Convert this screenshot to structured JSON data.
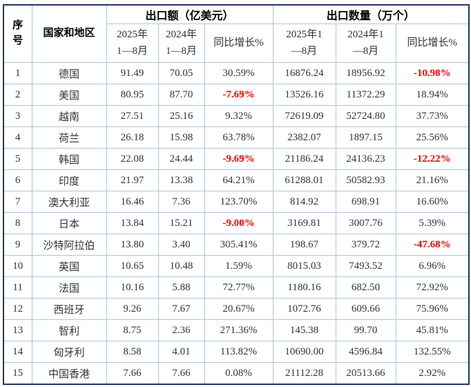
{
  "table": {
    "title_semantics": "export value and quantity by country table",
    "header": {
      "col_serial": "序\n号",
      "col_country": "国家和地区",
      "group_export_value": "出口额（亿美元）",
      "group_export_qty": "出口数量（万个）",
      "value_sub": [
        "2025年\n1—8月",
        "2024年\n1—8月",
        "同比增长%"
      ],
      "qty_sub": [
        "2025年1\n—8月",
        "2024年1\n—8月",
        "同比增长%"
      ]
    },
    "rows": [
      {
        "no": "1",
        "country": "德国",
        "v2025": "91.49",
        "v2024": "70.05",
        "vg": "30.59%",
        "q2025": "16876.24",
        "q2024": "18956.92",
        "qg": "-10.98%"
      },
      {
        "no": "2",
        "country": "美国",
        "v2025": "80.95",
        "v2024": "87.70",
        "vg": "-7.69%",
        "q2025": "13526.16",
        "q2024": "11372.29",
        "qg": "18.94%"
      },
      {
        "no": "3",
        "country": "越南",
        "v2025": "27.51",
        "v2024": "25.16",
        "vg": "9.32%",
        "q2025": "72619.09",
        "q2024": "52724.80",
        "qg": "37.73%"
      },
      {
        "no": "4",
        "country": "荷兰",
        "v2025": "26.18",
        "v2024": "15.98",
        "vg": "63.78%",
        "q2025": "2382.07",
        "q2024": "1897.15",
        "qg": "25.56%"
      },
      {
        "no": "5",
        "country": "韩国",
        "v2025": "22.08",
        "v2024": "24.44",
        "vg": "-9.69%",
        "q2025": "21186.24",
        "q2024": "24136.23",
        "qg": "-12.22%"
      },
      {
        "no": "6",
        "country": "印度",
        "v2025": "21.97",
        "v2024": "13.38",
        "vg": "64.21%",
        "q2025": "61288.01",
        "q2024": "50582.93",
        "qg": "21.16%"
      },
      {
        "no": "7",
        "country": "澳大利亚",
        "v2025": "16.46",
        "v2024": "7.36",
        "vg": "123.70%",
        "q2025": "814.92",
        "q2024": "698.91",
        "qg": "16.60%"
      },
      {
        "no": "8",
        "country": "日本",
        "v2025": "13.84",
        "v2024": "15.21",
        "vg": "-9.00%",
        "q2025": "3169.81",
        "q2024": "3007.76",
        "qg": "5.39%"
      },
      {
        "no": "9",
        "country": "沙特阿拉伯",
        "v2025": "13.80",
        "v2024": "3.40",
        "vg": "305.41%",
        "q2025": "198.67",
        "q2024": "379.72",
        "qg": "-47.68%"
      },
      {
        "no": "10",
        "country": "英国",
        "v2025": "10.65",
        "v2024": "10.48",
        "vg": "1.59%",
        "q2025": "8015.03",
        "q2024": "7493.52",
        "qg": "6.96%"
      },
      {
        "no": "11",
        "country": "法国",
        "v2025": "10.16",
        "v2024": "5.88",
        "vg": "72.77%",
        "q2025": "1180.16",
        "q2024": "682.50",
        "qg": "72.92%"
      },
      {
        "no": "12",
        "country": "西班牙",
        "v2025": "9.26",
        "v2024": "7.67",
        "vg": "20.67%",
        "q2025": "1072.76",
        "q2024": "609.66",
        "qg": "75.96%"
      },
      {
        "no": "13",
        "country": "智利",
        "v2025": "8.75",
        "v2024": "2.36",
        "vg": "271.36%",
        "q2025": "145.38",
        "q2024": "99.70",
        "qg": "45.81%"
      },
      {
        "no": "14",
        "country": "匈牙利",
        "v2025": "8.58",
        "v2024": "4.01",
        "vg": "113.82%",
        "q2025": "10690.00",
        "q2024": "4596.84",
        "qg": "132.55%"
      },
      {
        "no": "15",
        "country": "中国香港",
        "v2025": "7.66",
        "v2024": "7.66",
        "vg": "0.08%",
        "q2025": "21112.28",
        "q2024": "20513.66",
        "qg": "2.92%"
      }
    ]
  },
  "colors": {
    "outer_border": "#1f3864",
    "inner_border": "#a9c6e3",
    "text": "#333333",
    "negative_value": "#ff0000",
    "header_text": "#000000",
    "background": "#ffffff"
  }
}
